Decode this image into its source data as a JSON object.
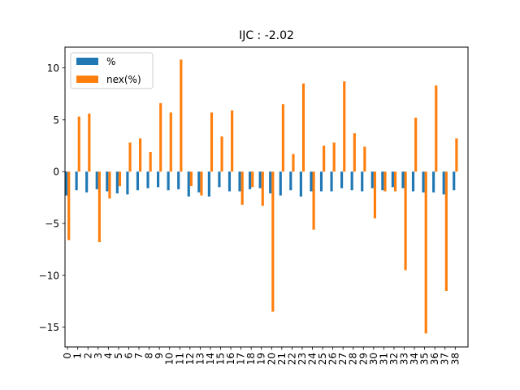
{
  "chart_data": {
    "type": "bar",
    "title": "IJC : -2.02",
    "xlabel": "",
    "ylabel": "",
    "categories": [
      "0",
      "1",
      "2",
      "3",
      "4",
      "5",
      "6",
      "7",
      "8",
      "9",
      "10",
      "11",
      "12",
      "13",
      "14",
      "15",
      "16",
      "17",
      "18",
      "19",
      "20",
      "21",
      "22",
      "23",
      "24",
      "25",
      "26",
      "27",
      "28",
      "29",
      "30",
      "31",
      "32",
      "33",
      "34",
      "35",
      "36",
      "37",
      "38"
    ],
    "series": [
      {
        "name": "%",
        "color": "#1f77b4",
        "values": [
          -2.3,
          -1.8,
          -2.0,
          -1.7,
          -1.9,
          -2.1,
          -2.2,
          -1.8,
          -1.6,
          -1.5,
          -1.8,
          -1.7,
          -2.4,
          -2.0,
          -2.4,
          -1.5,
          -1.9,
          -1.9,
          -1.7,
          -1.6,
          -2.1,
          -2.3,
          -1.8,
          -2.4,
          -1.9,
          -1.9,
          -1.9,
          -1.6,
          -1.8,
          -1.9,
          -1.6,
          -1.8,
          -1.5,
          -1.6,
          -1.9,
          -2.0,
          -2.0,
          -2.2,
          -1.8
        ]
      },
      {
        "name": "nex(%)",
        "color": "#ff7f0e",
        "values": [
          -6.6,
          5.3,
          5.6,
          -6.8,
          -2.6,
          -1.4,
          2.8,
          3.2,
          1.9,
          6.6,
          5.7,
          10.8,
          -1.4,
          -2.3,
          5.7,
          3.4,
          5.9,
          -3.2,
          -1.5,
          -3.3,
          -13.5,
          6.5,
          1.7,
          8.5,
          -5.6,
          2.5,
          2.8,
          8.7,
          3.7,
          2.4,
          -4.5,
          -1.9,
          -1.9,
          -9.5,
          5.2,
          -15.6,
          8.3,
          -11.5,
          3.2
        ]
      }
    ],
    "ylim": [
      -16.9,
      12.0
    ],
    "yticks": [
      -15,
      -10,
      -5,
      0,
      5,
      10
    ],
    "ytick_labels": [
      "−15",
      "−10",
      "−5",
      "0",
      "5",
      "10"
    ],
    "grid": false,
    "legend_position": "upper-left"
  }
}
